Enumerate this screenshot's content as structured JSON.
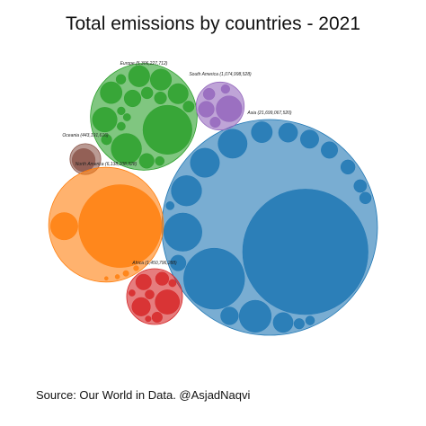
{
  "chart_data": {
    "type": "packed-bubble",
    "title": "Total emissions by countries - 2021",
    "source": "Source: Our World in Data. @AsjadNaqvi",
    "series": [
      {
        "label": "Asia (21,699,067,520)",
        "value": 21699067520,
        "color": "#1f77b4",
        "children": [
          11472369000,
          2709684000,
          1067398000,
          748886000,
          672379000,
          619607000,
          616069000,
          322000000,
          290000000,
          265000000,
          245000000,
          230000000,
          200000000,
          180000000,
          150000000,
          120000000,
          100000000,
          80000000,
          60000000,
          50000000
        ]
      },
      {
        "label": "Europe (5,306,227,712)",
        "value": 5306227712,
        "color": "#2ca02c",
        "children": [
          1755000000,
          674754000,
          446000000,
          347000000,
          330000000,
          329000000,
          299000000,
          205000000,
          161000000,
          110000000,
          100000000,
          90000000,
          80000000,
          70000000,
          60000000,
          50000000,
          45000000,
          40000000
        ]
      },
      {
        "label": "South America (1,074,998,528)",
        "value": 1074998528,
        "color": "#9467bd",
        "children": [
          489000000,
          185000000,
          100000000,
          80000000,
          56000000,
          40000000,
          30000000
        ]
      },
      {
        "label": "Oceania (443,191,616)",
        "value": 443191616,
        "color": "#8c564b",
        "children": [
          391000000,
          34000000,
          10000000
        ]
      },
      {
        "label": "North America (6,138,108,928)",
        "value": 6138108928,
        "color": "#ff7f0e",
        "children": [
          5007000000,
          672000000,
          545000000,
          25000000,
          20000000,
          15000000,
          10000000
        ]
      },
      {
        "label": "Africa (1,450,796,288)",
        "value": 1450796288,
        "color": "#d62728",
        "children": [
          435000000,
          250000000,
          180000000,
          130000000,
          80000000,
          60000000,
          50000000,
          40000000,
          30000000,
          25000000
        ]
      }
    ]
  }
}
